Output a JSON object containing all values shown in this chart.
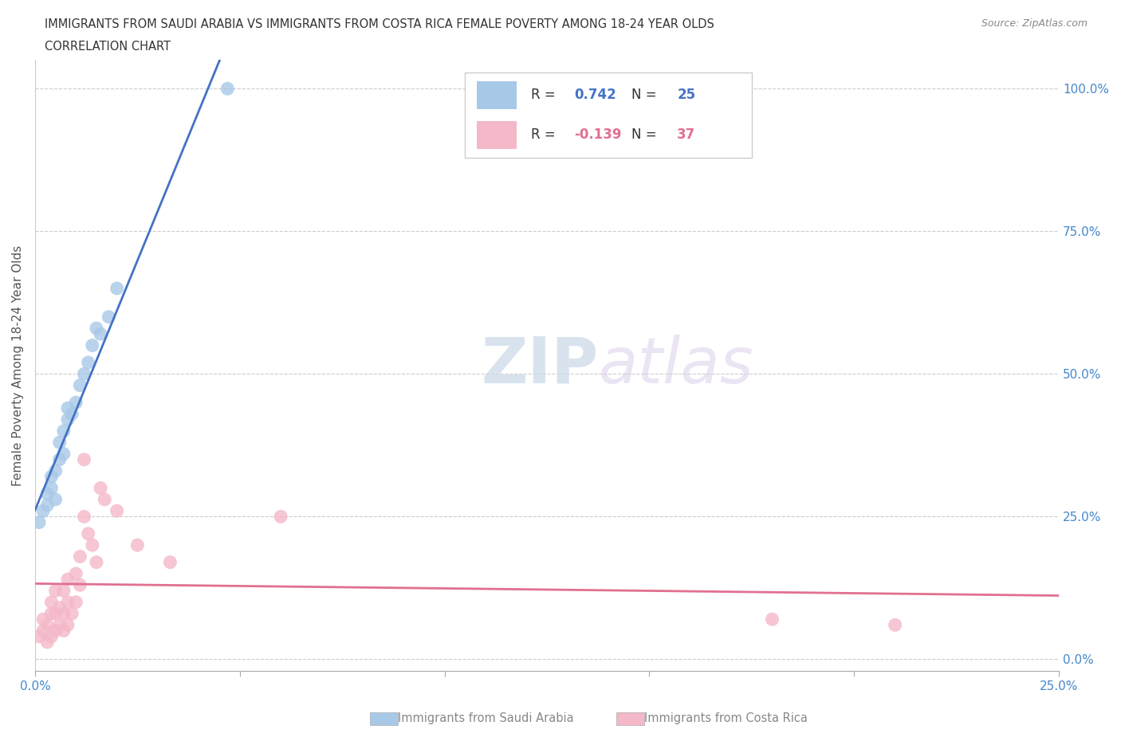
{
  "title_line1": "IMMIGRANTS FROM SAUDI ARABIA VS IMMIGRANTS FROM COSTA RICA FEMALE POVERTY AMONG 18-24 YEAR OLDS",
  "title_line2": "CORRELATION CHART",
  "source": "Source: ZipAtlas.com",
  "ylabel": "Female Poverty Among 18-24 Year Olds",
  "xlabel_label1": "Immigrants from Saudi Arabia",
  "xlabel_label2": "Immigrants from Costa Rica",
  "watermark_zip": "ZIP",
  "watermark_atlas": "atlas",
  "blue_R": 0.742,
  "blue_N": 25,
  "pink_R": -0.139,
  "pink_N": 37,
  "blue_color": "#a8c8e8",
  "blue_line_color": "#4472c4",
  "pink_color": "#f4b8c8",
  "pink_line_color": "#e07090",
  "xlim": [
    0.0,
    0.25
  ],
  "ylim": [
    -0.02,
    1.05
  ],
  "xticks": [
    0.0,
    0.05,
    0.1,
    0.15,
    0.2,
    0.25
  ],
  "yticks": [
    0.0,
    0.25,
    0.5,
    0.75,
    1.0
  ],
  "blue_scatter_x": [
    0.001,
    0.002,
    0.003,
    0.003,
    0.004,
    0.004,
    0.005,
    0.005,
    0.006,
    0.006,
    0.007,
    0.007,
    0.008,
    0.008,
    0.009,
    0.01,
    0.011,
    0.012,
    0.013,
    0.014,
    0.015,
    0.016,
    0.018,
    0.02,
    0.047
  ],
  "blue_scatter_y": [
    0.24,
    0.26,
    0.27,
    0.29,
    0.3,
    0.32,
    0.28,
    0.33,
    0.35,
    0.38,
    0.36,
    0.4,
    0.42,
    0.44,
    0.43,
    0.45,
    0.48,
    0.5,
    0.52,
    0.55,
    0.58,
    0.57,
    0.6,
    0.65,
    1.0
  ],
  "pink_scatter_x": [
    0.001,
    0.002,
    0.002,
    0.003,
    0.003,
    0.004,
    0.004,
    0.004,
    0.005,
    0.005,
    0.005,
    0.006,
    0.006,
    0.007,
    0.007,
    0.007,
    0.008,
    0.008,
    0.008,
    0.009,
    0.01,
    0.01,
    0.011,
    0.011,
    0.012,
    0.012,
    0.013,
    0.014,
    0.015,
    0.016,
    0.017,
    0.02,
    0.025,
    0.033,
    0.06,
    0.18,
    0.21
  ],
  "pink_scatter_y": [
    0.04,
    0.05,
    0.07,
    0.03,
    0.06,
    0.04,
    0.08,
    0.1,
    0.05,
    0.08,
    0.12,
    0.06,
    0.09,
    0.05,
    0.08,
    0.12,
    0.06,
    0.1,
    0.14,
    0.08,
    0.1,
    0.15,
    0.13,
    0.18,
    0.25,
    0.35,
    0.22,
    0.2,
    0.17,
    0.3,
    0.28,
    0.26,
    0.2,
    0.17,
    0.25,
    0.07,
    0.06
  ]
}
